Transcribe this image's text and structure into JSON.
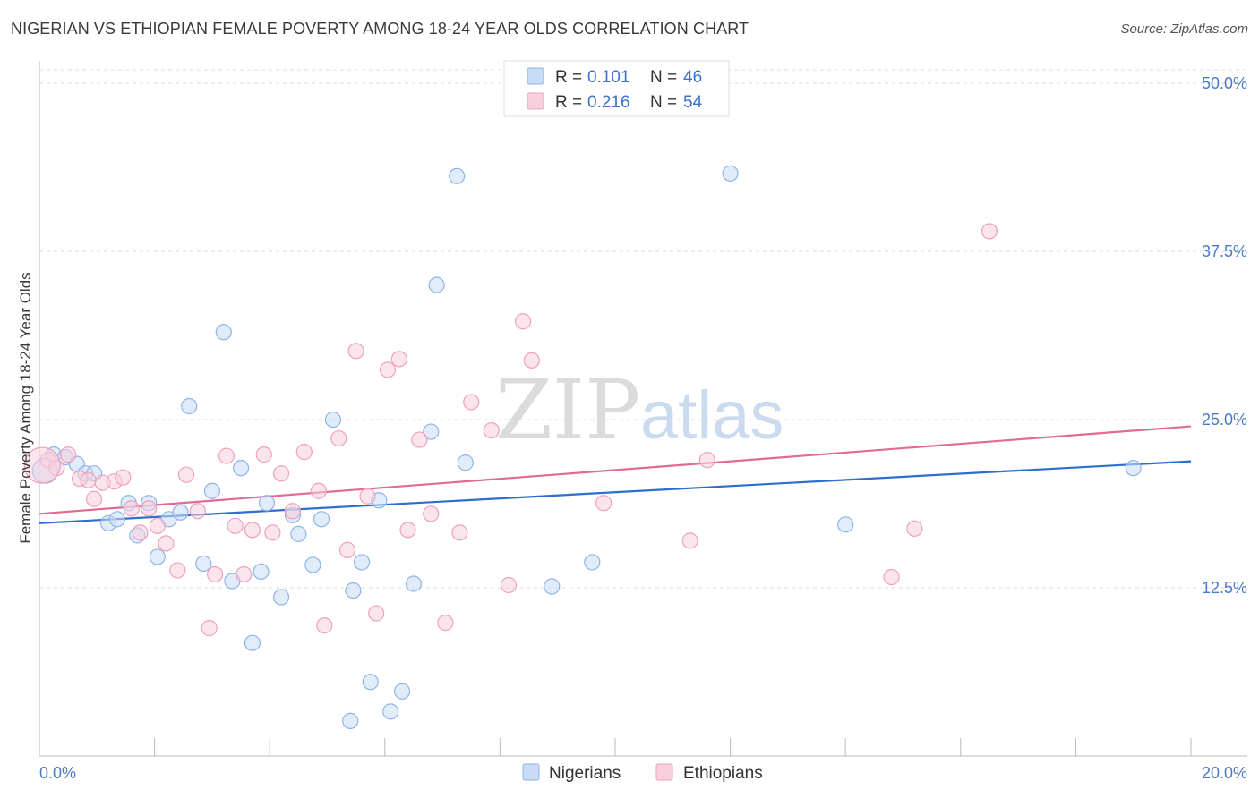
{
  "header": {
    "title": "NIGERIAN VS ETHIOPIAN FEMALE POVERTY AMONG 18-24 YEAR OLDS CORRELATION CHART",
    "source": "Source: ZipAtlas.com"
  },
  "watermark": {
    "zip": "ZIP",
    "atlas": "atlas"
  },
  "chart_data": {
    "type": "scatter",
    "xlabel": "",
    "ylabel": "Female Poverty Among 18-24 Year Olds",
    "xlim": [
      0,
      20
    ],
    "ylim": [
      0,
      51
    ],
    "x_ticks": [
      0,
      2,
      4,
      6,
      8,
      10,
      12,
      14,
      16,
      18,
      20
    ],
    "x_tick_labels": {
      "left": "0.0%",
      "right": "20.0%"
    },
    "y_ticks": [
      {
        "value": 12.5,
        "label": "12.5%"
      },
      {
        "value": 25.0,
        "label": "25.0%"
      },
      {
        "value": 37.5,
        "label": "37.5%"
      },
      {
        "value": 50.0,
        "label": "50.0%"
      }
    ],
    "grid": true,
    "legend_position": "top-center",
    "stats": [
      {
        "r_label": "R =",
        "r": "0.101",
        "n_label": "N =",
        "n": "46"
      },
      {
        "r_label": "R =",
        "r": "0.216",
        "n_label": "N =",
        "n": "54"
      }
    ],
    "series": [
      {
        "name": "Nigerians",
        "color": "#8fb4e8",
        "fill": "#c9dcf5",
        "trend_color": "#2d6fcc",
        "trend": {
          "x": [
            0,
            20
          ],
          "y": [
            17.3,
            21.9
          ]
        },
        "points": [
          [
            0.1,
            21.2
          ],
          [
            0.25,
            22.4
          ],
          [
            0.45,
            22.2
          ],
          [
            0.65,
            21.7
          ],
          [
            0.8,
            21.0
          ],
          [
            0.95,
            21.0
          ],
          [
            1.2,
            17.3
          ],
          [
            1.35,
            17.6
          ],
          [
            1.55,
            18.8
          ],
          [
            1.7,
            16.4
          ],
          [
            1.9,
            18.8
          ],
          [
            2.05,
            14.8
          ],
          [
            2.25,
            17.6
          ],
          [
            2.45,
            18.1
          ],
          [
            2.6,
            26.0
          ],
          [
            2.85,
            14.3
          ],
          [
            3.0,
            19.7
          ],
          [
            3.2,
            31.5
          ],
          [
            3.35,
            13.0
          ],
          [
            3.5,
            21.4
          ],
          [
            3.7,
            8.4
          ],
          [
            3.85,
            13.7
          ],
          [
            3.95,
            18.8
          ],
          [
            4.2,
            11.8
          ],
          [
            4.4,
            17.9
          ],
          [
            4.5,
            16.5
          ],
          [
            4.75,
            14.2
          ],
          [
            4.9,
            17.6
          ],
          [
            5.1,
            25.0
          ],
          [
            5.45,
            12.3
          ],
          [
            5.6,
            14.4
          ],
          [
            5.75,
            5.5
          ],
          [
            5.9,
            19.0
          ],
          [
            6.1,
            3.3
          ],
          [
            6.3,
            4.8
          ],
          [
            6.5,
            12.8
          ],
          [
            6.8,
            24.1
          ],
          [
            6.9,
            35.0
          ],
          [
            7.25,
            43.1
          ],
          [
            7.4,
            21.8
          ],
          [
            8.9,
            12.6
          ],
          [
            9.6,
            14.4
          ],
          [
            12.0,
            43.3
          ],
          [
            14.0,
            17.2
          ],
          [
            19.0,
            21.4
          ],
          [
            5.4,
            2.6
          ]
        ]
      },
      {
        "name": "Ethiopians",
        "color": "#f0a0bc",
        "fill": "#f8cfdc",
        "trend_color": "#e06b98",
        "trend": {
          "x": [
            0,
            20
          ],
          "y": [
            18.0,
            24.5
          ]
        },
        "points": [
          [
            0.15,
            22.0
          ],
          [
            0.3,
            21.4
          ],
          [
            0.5,
            22.4
          ],
          [
            0.7,
            20.6
          ],
          [
            0.85,
            20.5
          ],
          [
            0.95,
            19.1
          ],
          [
            1.1,
            20.3
          ],
          [
            1.3,
            20.4
          ],
          [
            1.45,
            20.7
          ],
          [
            1.6,
            18.4
          ],
          [
            1.75,
            16.6
          ],
          [
            1.9,
            18.4
          ],
          [
            2.05,
            17.1
          ],
          [
            2.2,
            15.8
          ],
          [
            2.4,
            13.8
          ],
          [
            2.55,
            20.9
          ],
          [
            2.75,
            18.2
          ],
          [
            2.95,
            9.5
          ],
          [
            3.05,
            13.5
          ],
          [
            3.25,
            22.3
          ],
          [
            3.4,
            17.1
          ],
          [
            3.55,
            13.5
          ],
          [
            3.7,
            16.8
          ],
          [
            3.9,
            22.4
          ],
          [
            4.05,
            16.6
          ],
          [
            4.2,
            21.0
          ],
          [
            4.4,
            18.2
          ],
          [
            4.6,
            22.6
          ],
          [
            4.85,
            19.7
          ],
          [
            4.95,
            9.7
          ],
          [
            5.2,
            23.6
          ],
          [
            5.35,
            15.3
          ],
          [
            5.5,
            30.1
          ],
          [
            5.7,
            19.3
          ],
          [
            5.85,
            10.6
          ],
          [
            6.05,
            28.7
          ],
          [
            6.25,
            29.5
          ],
          [
            6.4,
            16.8
          ],
          [
            6.6,
            23.5
          ],
          [
            6.8,
            18.0
          ],
          [
            7.05,
            9.9
          ],
          [
            7.3,
            16.6
          ],
          [
            7.5,
            26.3
          ],
          [
            7.85,
            24.2
          ],
          [
            8.15,
            12.7
          ],
          [
            8.4,
            32.3
          ],
          [
            8.55,
            29.4
          ],
          [
            9.8,
            18.8
          ],
          [
            11.3,
            16.0
          ],
          [
            11.6,
            22.0
          ],
          [
            14.8,
            13.3
          ],
          [
            15.2,
            16.9
          ],
          [
            16.5,
            39.0
          ],
          [
            0.05,
            21.6
          ]
        ]
      }
    ]
  }
}
